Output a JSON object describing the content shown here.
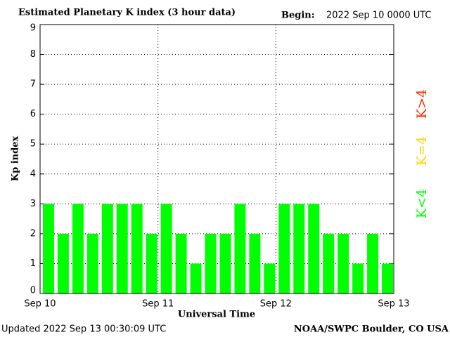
{
  "chart_data": {
    "type": "bar",
    "title": "Estimated Planetary K index (3 hour data)",
    "begin_label": "Begin:",
    "begin_value": "2022 Sep 10 0000 UTC",
    "ylabel": "Kp index",
    "xlabel": "Universal Time",
    "footer_left": "Updated 2022 Sep 13 00:30:09 UTC",
    "footer_right": "NOAA/SWPC Boulder, CO USA",
    "categories": [
      null,
      null,
      null,
      null,
      null,
      null,
      null,
      null,
      null,
      null,
      null,
      null,
      null,
      null,
      null,
      null,
      null,
      null,
      null,
      null,
      null,
      null,
      null,
      null
    ],
    "values": [
      3,
      2,
      3,
      2,
      3,
      3,
      3,
      2,
      3,
      2,
      1,
      2,
      2,
      3,
      2,
      1,
      3,
      3,
      3,
      2,
      2,
      1,
      2,
      1
    ],
    "color": "#00ff00",
    "xtick_labels": [
      "Sep 10",
      "Sep 11",
      "Sep 12",
      "Sep 13"
    ],
    "ylim": [
      0,
      9
    ],
    "yticks": [
      0,
      1,
      2,
      3,
      4,
      5,
      6,
      7,
      8,
      9
    ],
    "grid": true,
    "legend": [
      {
        "label": "K<4",
        "color": "#00ff00"
      },
      {
        "label": "K=4",
        "color": "#ffd700"
      },
      {
        "label": "K>4",
        "color": "#ff2a00"
      }
    ]
  }
}
